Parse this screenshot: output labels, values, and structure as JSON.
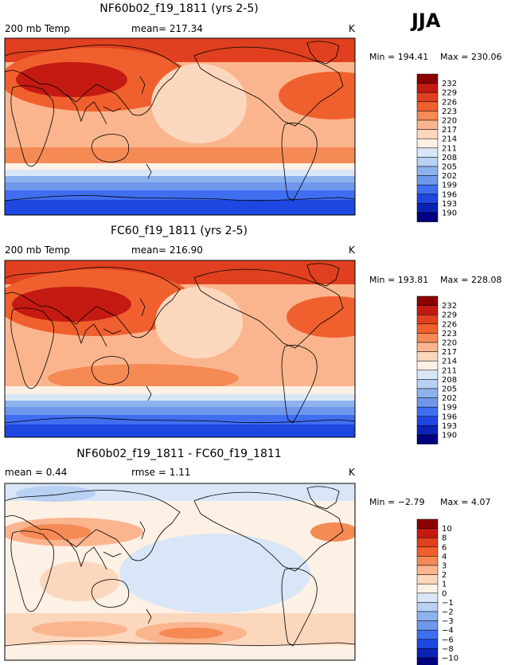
{
  "season": "JJA",
  "chart_data": [
    {
      "type": "heatmap",
      "title": "NF60b02_f19_1811 (yrs 2-5)",
      "left_label": "200 mb Temp",
      "center_label": "mean= 217.34",
      "units": "K",
      "min_label": "Min = 194.41",
      "max_label": "Max = 230.06",
      "levels": [
        "232",
        "229",
        "226",
        "223",
        "220",
        "217",
        "214",
        "211",
        "208",
        "205",
        "202",
        "199",
        "196",
        "193",
        "190"
      ],
      "colors": [
        "#8b0000",
        "#c41a12",
        "#e0401f",
        "#f0602e",
        "#f58a55",
        "#fbb58e",
        "#fbd7bd",
        "#fdf0e4",
        "#d8e6f7",
        "#b9d1f3",
        "#8db3ee",
        "#6f98ec",
        "#3f6ef0",
        "#1d47e0",
        "#0a22b5",
        "#000080"
      ]
    },
    {
      "type": "heatmap",
      "title": "FC60_f19_1811 (yrs 2-5)",
      "left_label": "200 mb Temp",
      "center_label": "mean= 216.90",
      "units": "K",
      "min_label": "Min = 193.81",
      "max_label": "Max = 228.08",
      "levels": [
        "232",
        "229",
        "226",
        "223",
        "220",
        "217",
        "214",
        "211",
        "208",
        "205",
        "202",
        "199",
        "196",
        "193",
        "190"
      ],
      "colors": [
        "#8b0000",
        "#c41a12",
        "#e0401f",
        "#f0602e",
        "#f58a55",
        "#fbb58e",
        "#fbd7bd",
        "#fdf0e4",
        "#d8e6f7",
        "#b9d1f3",
        "#8db3ee",
        "#6f98ec",
        "#3f6ef0",
        "#1d47e0",
        "#0a22b5",
        "#000080"
      ]
    },
    {
      "type": "heatmap",
      "title": "NF60b02_f19_1811 - FC60_f19_1811",
      "left_label": "mean =   0.44",
      "center_label": "rmse =   1.11",
      "units": "K",
      "min_label": "Min =   −2.79",
      "max_label": "Max =   4.07",
      "levels": [
        "10",
        "8",
        "6",
        "4",
        "3",
        "2",
        "1",
        "0",
        "−1",
        "−2",
        "−3",
        "−4",
        "−6",
        "−8",
        "−10"
      ],
      "colors": [
        "#8b0000",
        "#c41a12",
        "#e0401f",
        "#f0602e",
        "#f58a55",
        "#fbb58e",
        "#fbd7bd",
        "#fdf0e4",
        "#d8e6f7",
        "#b9d1f3",
        "#8db3ee",
        "#6f98ec",
        "#3f6ef0",
        "#1d47e0",
        "#0a22b5",
        "#000080"
      ]
    }
  ]
}
